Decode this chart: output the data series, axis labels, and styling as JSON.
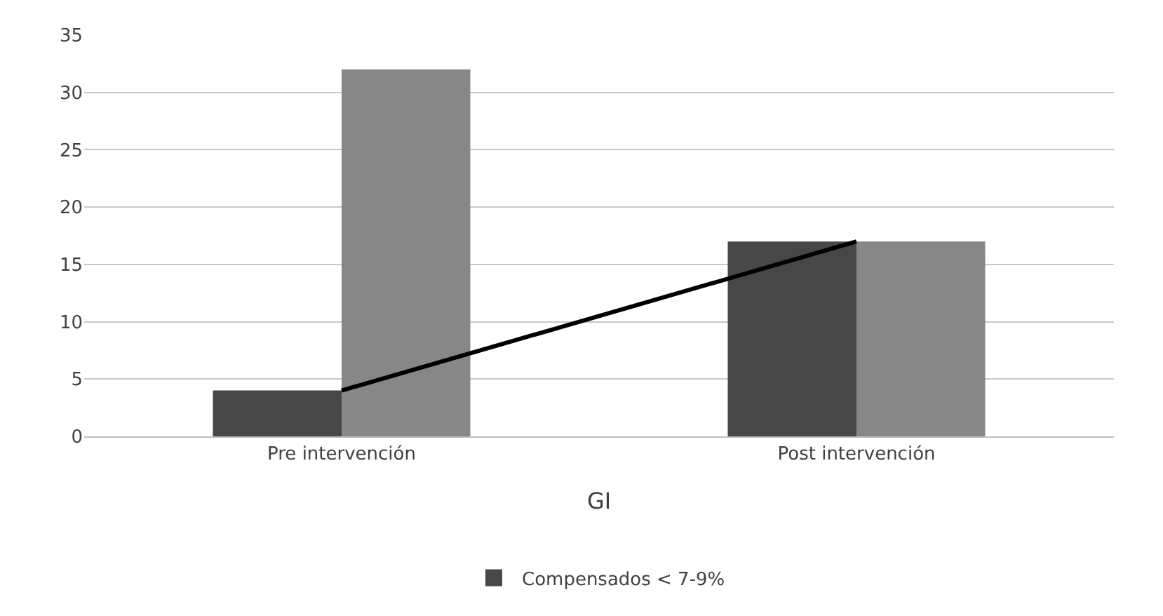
{
  "chart_data": {
    "type": "bar",
    "xlabel": "GI",
    "categories": [
      "Pre intervención",
      "Post intervención"
    ],
    "series": [
      {
        "name": "Compensados < 7-9%",
        "color": "#474747",
        "values": [
          4,
          17
        ]
      },
      {
        "color": "#878787",
        "values": [
          32,
          17
        ]
      },
      {
        "type": "line",
        "color": "#000000",
        "values": [
          4,
          17
        ],
        "marker": "none",
        "line_style": "solid"
      }
    ],
    "ylim": [
      0,
      35
    ],
    "yticks": [
      0,
      5,
      10,
      15,
      20,
      25,
      30,
      35
    ],
    "grid": "y",
    "legend": "bottom"
  }
}
